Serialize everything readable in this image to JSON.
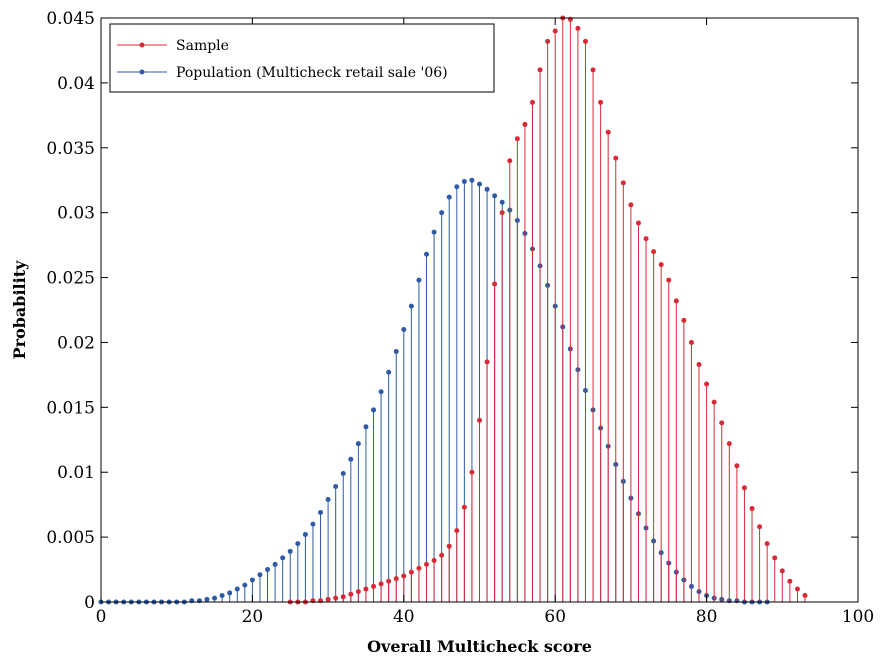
{
  "chart_data": {
    "type": "stem",
    "xlabel": "Overall Multicheck score",
    "ylabel": "Probability",
    "xlim": [
      0,
      100
    ],
    "ylim": [
      0,
      0.045
    ],
    "x_ticks": [
      0,
      20,
      40,
      60,
      80,
      100
    ],
    "x_tick_labels": [
      "0",
      "20",
      "40",
      "60",
      "80",
      "100"
    ],
    "y_ticks": [
      0,
      0.005,
      0.01,
      0.015,
      0.02,
      0.025,
      0.03,
      0.035,
      0.04,
      0.045
    ],
    "y_tick_labels": [
      "0",
      "0.005",
      "0.01",
      "0.015",
      "0.02",
      "0.025",
      "0.03",
      "0.035",
      "0.04",
      "0.045"
    ],
    "grid": false,
    "legend_position": "top-left",
    "series": [
      {
        "name": "Sample",
        "color": "#d62b36",
        "x_start": 25,
        "x_step": 1,
        "values": [
          0.0,
          0.0,
          0.0,
          0.0001,
          0.0001,
          0.0002,
          0.0003,
          0.0004,
          0.0006,
          0.0008,
          0.001,
          0.0012,
          0.0014,
          0.0016,
          0.0018,
          0.002,
          0.0023,
          0.0026,
          0.0029,
          0.0032,
          0.0036,
          0.0043,
          0.0055,
          0.0073,
          0.01,
          0.014,
          0.0185,
          0.0245,
          0.03,
          0.034,
          0.0357,
          0.0368,
          0.0385,
          0.041,
          0.0432,
          0.044,
          0.045,
          0.0449,
          0.0442,
          0.0432,
          0.041,
          0.0385,
          0.0362,
          0.0342,
          0.0323,
          0.0306,
          0.0292,
          0.028,
          0.027,
          0.026,
          0.0248,
          0.0232,
          0.0217,
          0.02,
          0.0183,
          0.0168,
          0.0154,
          0.0138,
          0.0122,
          0.0105,
          0.0088,
          0.0072,
          0.0058,
          0.0045,
          0.0034,
          0.0024,
          0.0016,
          0.001,
          0.0005
        ]
      },
      {
        "name": "Population (Multicheck retail sale '06)",
        "color": "#2f5aa5",
        "x_start": 0,
        "x_step": 1,
        "values": [
          0.0,
          0.0,
          0.0,
          0.0,
          0.0,
          0.0,
          0.0,
          0.0,
          0.0,
          0.0,
          0.0,
          0.0,
          0.0001,
          0.0001,
          0.0002,
          0.0003,
          0.0005,
          0.0007,
          0.001,
          0.0013,
          0.0017,
          0.0021,
          0.0025,
          0.0029,
          0.0034,
          0.0039,
          0.0045,
          0.0052,
          0.006,
          0.0069,
          0.0079,
          0.0089,
          0.0099,
          0.011,
          0.0122,
          0.0135,
          0.0148,
          0.0162,
          0.0177,
          0.0193,
          0.021,
          0.0228,
          0.0248,
          0.0268,
          0.0285,
          0.03,
          0.0312,
          0.032,
          0.0324,
          0.0325,
          0.0322,
          0.0318,
          0.0313,
          0.0308,
          0.0302,
          0.0294,
          0.0284,
          0.0272,
          0.0259,
          0.0244,
          0.0228,
          0.0212,
          0.0195,
          0.0179,
          0.0163,
          0.0148,
          0.0134,
          0.012,
          0.0106,
          0.0093,
          0.008,
          0.0068,
          0.0057,
          0.0047,
          0.0038,
          0.003,
          0.0023,
          0.0017,
          0.0012,
          0.0008,
          0.0005,
          0.0003,
          0.0002,
          0.0001,
          0.0001,
          0.0,
          0.0,
          0.0,
          0.0
        ]
      }
    ]
  }
}
